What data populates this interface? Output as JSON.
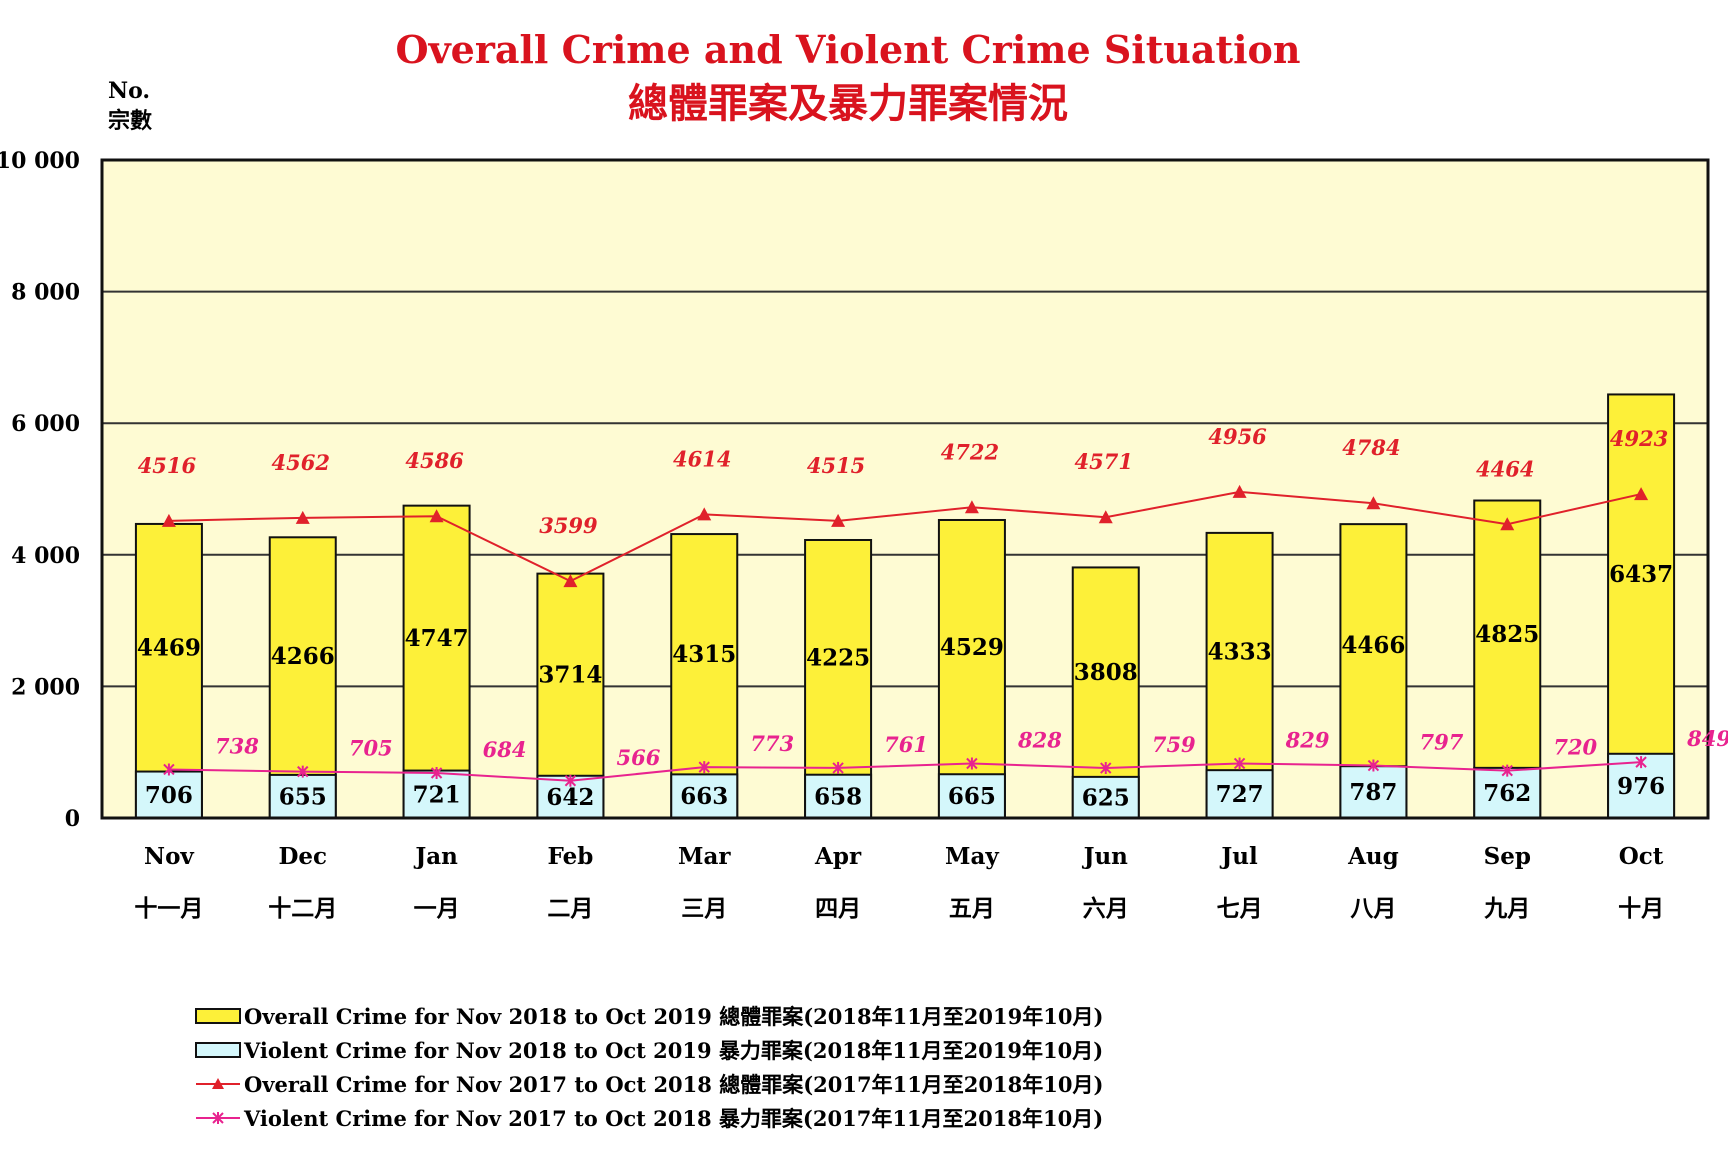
{
  "chart_data": {
    "type": "bar",
    "title": "Overall Crime and Violent Crime Situation",
    "subtitle": "總體罪案及暴力罪案情況",
    "ylabel": "No.",
    "ylabel_zh": "宗數",
    "ylim": [
      0,
      10000
    ],
    "ytick_labels": [
      "0",
      "2 000",
      "4 000",
      "6 000",
      "8 000",
      "10 000"
    ],
    "ytick_values": [
      0,
      2000,
      4000,
      6000,
      8000,
      10000
    ],
    "grid": true,
    "categories": [
      "Nov",
      "Dec",
      "Jan",
      "Feb",
      "Mar",
      "Apr",
      "May",
      "Jun",
      "Jul",
      "Aug",
      "Sep",
      "Oct"
    ],
    "categories_zh": [
      "十一月",
      "十二月",
      "一月",
      "二月",
      "三月",
      "四月",
      "五月",
      "六月",
      "七月",
      "八月",
      "九月",
      "十月"
    ],
    "series": [
      {
        "name": "Overall Crime for Nov 2018 to Oct 2019 總體罪案(2018年11月至2019年10月)",
        "kind": "bar",
        "color": "#fdf039",
        "values": [
          4469,
          4266,
          4747,
          3714,
          4315,
          4225,
          4529,
          3808,
          4333,
          4466,
          4825,
          6437
        ]
      },
      {
        "name": "Violent Crime for Nov 2018 to Oct 2019 暴力罪案(2018年11月至2019年10月)",
        "kind": "bar",
        "color": "#d4f7fb",
        "values": [
          706,
          655,
          721,
          642,
          663,
          658,
          665,
          625,
          727,
          787,
          762,
          976
        ]
      },
      {
        "name": "Overall Crime for Nov 2017 to Oct 2018 總體罪案(2017年11月至2018年10月)",
        "kind": "line",
        "marker": "triangle",
        "color": "#e0212b",
        "values": [
          4516,
          4562,
          4586,
          3599,
          4614,
          4515,
          4722,
          4571,
          4956,
          4784,
          4464,
          4923
        ]
      },
      {
        "name": "Violent Crime for Nov 2017 to Oct 2018 暴力罪案(2017年11月至2018年10月)",
        "kind": "line",
        "marker": "x",
        "color": "#e8238f",
        "values": [
          738,
          705,
          684,
          566,
          773,
          761,
          828,
          759,
          829,
          797,
          720,
          849
        ]
      }
    ],
    "legend_position": "bottom",
    "plot_background": "#fefbd3"
  }
}
